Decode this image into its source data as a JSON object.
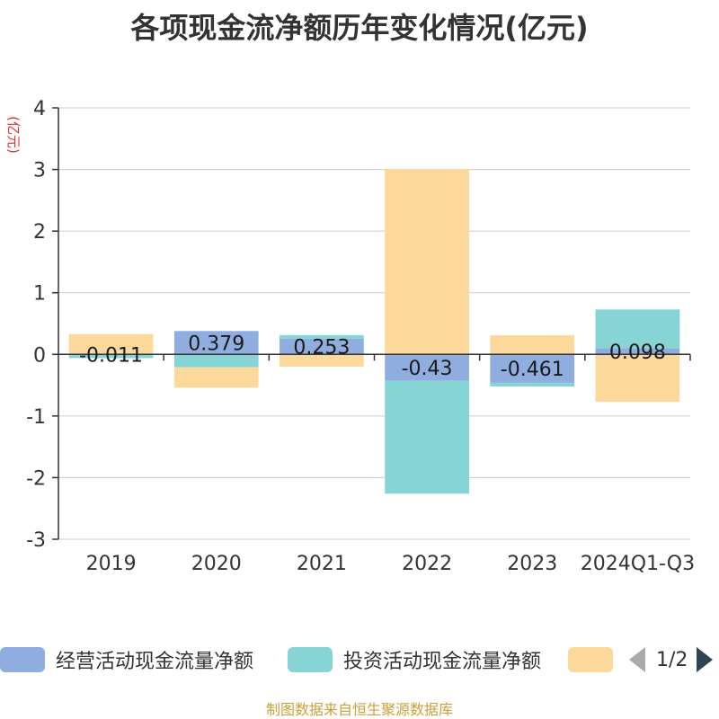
{
  "chart_data": {
    "type": "bar",
    "stacked": true,
    "title": "各项现金流净额历年变化情况(亿元)",
    "ylabel": "(亿元)",
    "ylim": [
      -3,
      4
    ],
    "yticks": [
      4,
      3,
      2,
      1,
      0,
      -1,
      -2,
      -3
    ],
    "categories": [
      "2019",
      "2020",
      "2021",
      "2022",
      "2023",
      "2024Q1-Q3"
    ],
    "series": [
      {
        "name": "经营活动现金流量净额",
        "color": "#8fadde",
        "values": [
          -0.011,
          0.379,
          0.253,
          -0.43,
          -0.461,
          0.098
        ],
        "data_labels": [
          "-0.011",
          "0.379",
          "0.253",
          "-0.43",
          "-0.461",
          "0.098"
        ]
      },
      {
        "name": "投资活动现金流量净额",
        "color": "#87d4d6",
        "values": [
          -0.05,
          -0.21,
          0.06,
          -1.83,
          -0.06,
          0.63
        ]
      },
      {
        "name": "",
        "color": "#fcd89a",
        "values": [
          0.33,
          -0.33,
          -0.2,
          3.01,
          0.31,
          -0.77
        ]
      }
    ],
    "grid": true,
    "legend_position": "bottom"
  },
  "legend": {
    "page": "1/2"
  },
  "source": "制图数据来自恒生聚源数据库"
}
